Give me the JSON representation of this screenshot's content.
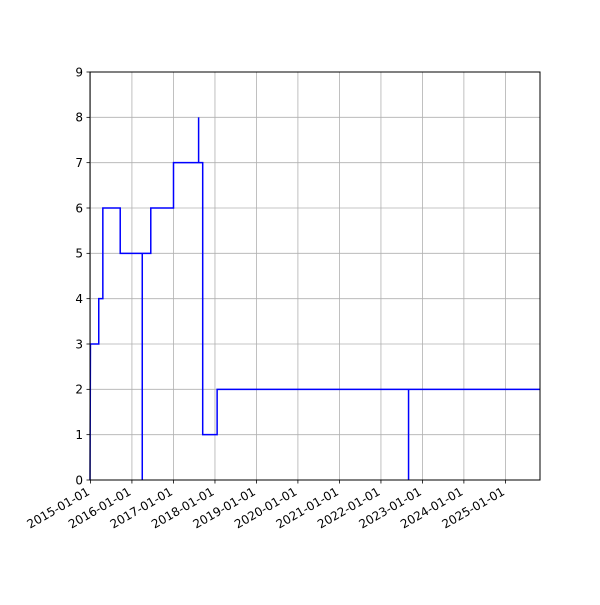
{
  "chart_data": {
    "type": "line",
    "title": "",
    "xlabel": "",
    "ylabel": "",
    "grid": true,
    "x_axis_type": "date",
    "xlim": [
      "2014-12-28",
      "2025-11-01"
    ],
    "ylim": [
      0,
      9
    ],
    "x_ticks": [
      "2015-01-01",
      "2016-01-01",
      "2017-01-01",
      "2018-01-01",
      "2019-01-01",
      "2020-01-01",
      "2021-01-01",
      "2022-01-01",
      "2023-01-01",
      "2024-01-01",
      "2025-01-01"
    ],
    "y_ticks": [
      0,
      1,
      2,
      3,
      4,
      5,
      6,
      7,
      8,
      9
    ],
    "series": [
      {
        "color": "#0000ff",
        "points": [
          {
            "x": "2014-12-28",
            "y": 0
          },
          {
            "x": "2015-01-01",
            "y": 3
          },
          {
            "x": "2015-03-15",
            "y": 3
          },
          {
            "x": "2015-03-15",
            "y": 4
          },
          {
            "x": "2015-04-20",
            "y": 4
          },
          {
            "x": "2015-04-20",
            "y": 6
          },
          {
            "x": "2015-09-20",
            "y": 6
          },
          {
            "x": "2015-09-20",
            "y": 5
          },
          {
            "x": "2016-04-01",
            "y": 5
          },
          {
            "x": "2016-04-01",
            "y": 0
          },
          {
            "x": "2016-04-01",
            "y": 5
          },
          {
            "x": "2016-06-15",
            "y": 5
          },
          {
            "x": "2016-06-15",
            "y": 6
          },
          {
            "x": "2017-01-01",
            "y": 6
          },
          {
            "x": "2017-01-01",
            "y": 7
          },
          {
            "x": "2017-08-10",
            "y": 7
          },
          {
            "x": "2017-08-10",
            "y": 8
          },
          {
            "x": "2017-08-10",
            "y": 7
          },
          {
            "x": "2017-09-15",
            "y": 7
          },
          {
            "x": "2017-09-15",
            "y": 1
          },
          {
            "x": "2018-01-20",
            "y": 1
          },
          {
            "x": "2018-01-20",
            "y": 2
          },
          {
            "x": "2022-09-01",
            "y": 2
          },
          {
            "x": "2022-09-01",
            "y": 0
          },
          {
            "x": "2022-09-01",
            "y": 2
          },
          {
            "x": "2025-11-01",
            "y": 2
          }
        ]
      }
    ]
  }
}
